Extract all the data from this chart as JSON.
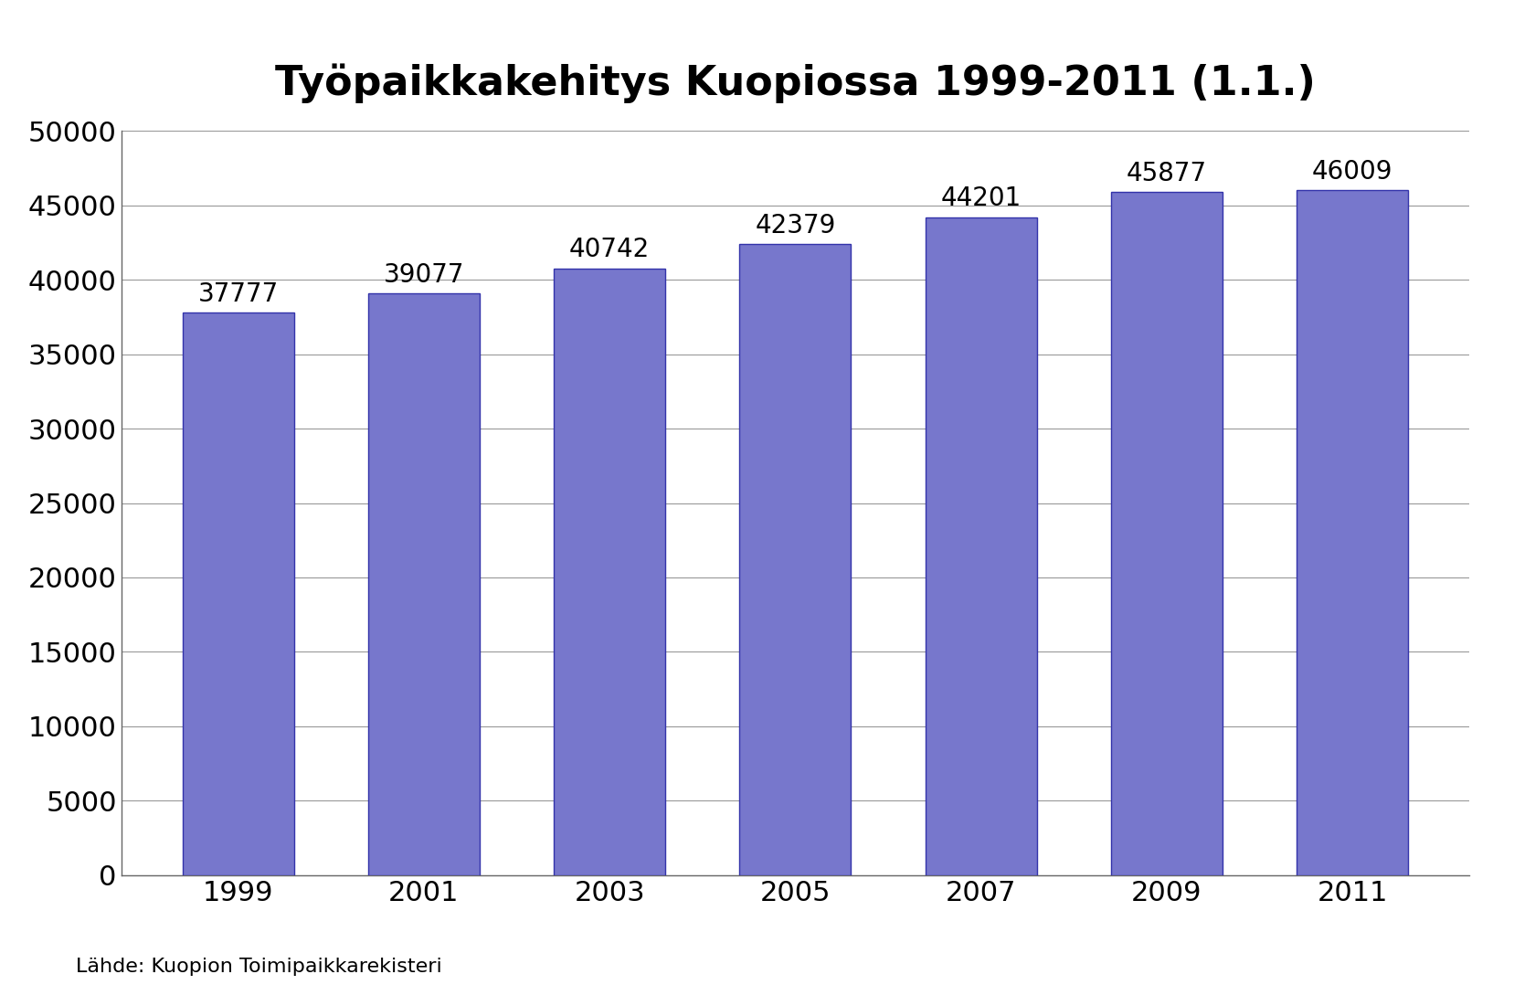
{
  "title": "Työpaikkakehitys Kuopiossa 1999-2011 (1.1.)",
  "categories": [
    "1999",
    "2001",
    "2003",
    "2005",
    "2007",
    "2009",
    "2011"
  ],
  "values": [
    37777,
    39077,
    40742,
    42379,
    44201,
    45877,
    46009
  ],
  "bar_color": "#7777CC",
  "bar_edge_color": "#3333AA",
  "ylim": [
    0,
    50000
  ],
  "yticks": [
    0,
    5000,
    10000,
    15000,
    20000,
    25000,
    30000,
    35000,
    40000,
    45000,
    50000
  ],
  "title_fontsize": 32,
  "tick_fontsize": 22,
  "label_fontsize": 20,
  "source_text": "Lähde: Kuopion Toimipaikkarekisteri",
  "background_color": "#ffffff",
  "grid_color": "#999999"
}
